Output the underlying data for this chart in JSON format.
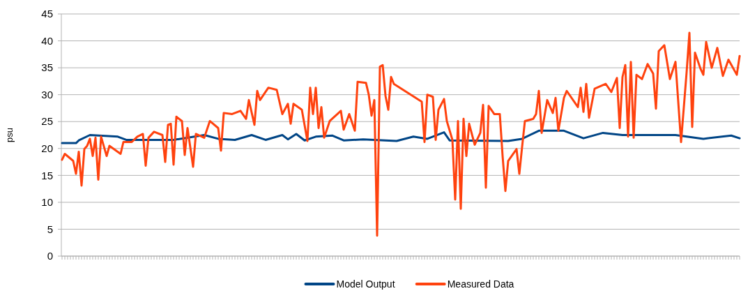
{
  "chart_data": {
    "type": "line",
    "ylabel": "psu",
    "ylim": [
      0,
      45
    ],
    "yticks": [
      0,
      5,
      10,
      15,
      20,
      25,
      30,
      35,
      40,
      45
    ],
    "grid": "y",
    "legend": "bottom",
    "marker": "none",
    "line_style": "solid",
    "categories": [
      null,
      null,
      null,
      null,
      null,
      null,
      null,
      null,
      null,
      null,
      null,
      null,
      null,
      null,
      null,
      null,
      null,
      null,
      null,
      null,
      null,
      null,
      null,
      null,
      null,
      null,
      null,
      null,
      null,
      null,
      null,
      null,
      null,
      null,
      null,
      null,
      null,
      null,
      null,
      null,
      null,
      null,
      null,
      null,
      null,
      null,
      null,
      null,
      null,
      null,
      null,
      null,
      null,
      null,
      null,
      null,
      null,
      null,
      null,
      null,
      null,
      null,
      null,
      null,
      null,
      null,
      null,
      null,
      null,
      null,
      null,
      null,
      null,
      null,
      null,
      null,
      null,
      null,
      null,
      null,
      null,
      null,
      null,
      null,
      null,
      null,
      null,
      null,
      null,
      null,
      null,
      null,
      null,
      null,
      null,
      null,
      null,
      null,
      null,
      null,
      null,
      null,
      null,
      null,
      null,
      null,
      null,
      null,
      null,
      null,
      null,
      null,
      null,
      null,
      null,
      null,
      null,
      null,
      null,
      null,
      null,
      null,
      null,
      null,
      null,
      null,
      null,
      null,
      null,
      null,
      null,
      null,
      null,
      null,
      null,
      null,
      null,
      null,
      null,
      null,
      null,
      null,
      null,
      null,
      null,
      null,
      null,
      null,
      null,
      null,
      null,
      null,
      null,
      null,
      null,
      null,
      null,
      null,
      null,
      null,
      null,
      null,
      null,
      null,
      null,
      null,
      null,
      null,
      null,
      null,
      null,
      null,
      null,
      null,
      null,
      null,
      null,
      null,
      null,
      null,
      null,
      null,
      null,
      null,
      null,
      null,
      null,
      null,
      null,
      null,
      null,
      null,
      null,
      null,
      null,
      null,
      null,
      null,
      null,
      null,
      null,
      null,
      null,
      null,
      null,
      null,
      null,
      null,
      null,
      null,
      null,
      null,
      null,
      null,
      null,
      null,
      null,
      null,
      null,
      null,
      null,
      null,
      null,
      null,
      null,
      null,
      null,
      null,
      null,
      null,
      null,
      null,
      null,
      null,
      null,
      null,
      null,
      null,
      null,
      null,
      null,
      null,
      null,
      null
    ],
    "series": [
      {
        "name": "Model Output",
        "color": "#004586",
        "values": [
          21.0,
          null,
          null,
          null,
          null,
          21.0,
          21.5,
          null,
          null,
          null,
          22.5,
          null,
          null,
          null,
          null,
          null,
          null,
          null,
          null,
          null,
          22.2,
          null,
          null,
          21.6,
          null,
          null,
          null,
          null,
          null,
          null,
          null,
          null,
          null,
          null,
          null,
          null,
          null,
          null,
          null,
          null,
          21.6,
          null,
          null,
          null,
          null,
          null,
          null,
          null,
          null,
          null,
          null,
          22.5,
          null,
          null,
          null,
          null,
          21.8,
          null,
          null,
          null,
          null,
          null,
          21.6,
          null,
          null,
          null,
          null,
          null,
          22.5,
          null,
          null,
          null,
          null,
          21.6,
          null,
          null,
          null,
          null,
          null,
          22.5,
          null,
          21.7,
          null,
          null,
          22.7,
          null,
          null,
          21.5,
          null,
          null,
          null,
          22.2,
          null,
          null,
          null,
          null,
          null,
          22.4,
          null,
          null,
          null,
          21.5,
          null,
          null,
          null,
          null,
          null,
          null,
          21.7,
          null,
          null,
          null,
          null,
          null,
          null,
          null,
          null,
          null,
          null,
          null,
          21.4,
          null,
          null,
          null,
          null,
          null,
          22.2,
          null,
          null,
          null,
          null,
          21.8,
          null,
          null,
          null,
          null,
          null,
          23.0,
          null,
          21.5,
          null,
          null,
          null,
          null,
          null,
          null,
          null,
          null,
          null,
          null,
          null,
          null,
          null,
          null,
          null,
          null,
          null,
          null,
          null,
          null,
          21.4,
          null,
          null,
          null,
          null,
          21.8,
          null,
          null,
          null,
          null,
          null,
          23.3,
          null,
          null,
          null,
          null,
          null,
          null,
          null,
          null,
          23.3,
          null,
          null,
          null,
          null,
          null,
          null,
          21.9,
          null,
          null,
          null,
          null,
          null,
          null,
          22.9,
          null,
          null,
          null,
          null,
          null,
          null,
          22.5,
          null,
          null,
          null,
          null,
          null,
          null,
          null,
          null,
          null,
          null,
          null,
          null,
          null,
          null,
          null,
          null,
          null,
          null,
          22.5,
          null,
          null,
          null,
          null,
          null,
          null,
          null,
          null,
          null,
          21.8,
          null,
          null,
          null,
          null,
          null,
          null,
          null,
          null,
          null,
          22.4,
          null,
          null,
          21.9
        ]
      },
      {
        "name": "Measured Data",
        "color": "#ff420e",
        "values": [
          17.9,
          19.0,
          null,
          null,
          17.7,
          15.3,
          19.4,
          13.1,
          19.9,
          20.5,
          21.8,
          18.6,
          22.0,
          14.2,
          22.2,
          null,
          18.6,
          20.5,
          null,
          null,
          null,
          19.0,
          21.2,
          null,
          null,
          21.2,
          null,
          22.2,
          null,
          22.7,
          16.8,
          22.0,
          null,
          23.1,
          null,
          null,
          22.5,
          17.5,
          24.4,
          24.6,
          17.0,
          25.9,
          null,
          25.1,
          18.8,
          23.8,
          null,
          16.6,
          22.7,
          null,
          null,
          22.0,
          null,
          25.1,
          null,
          null,
          23.8,
          19.6,
          26.6,
          null,
          null,
          26.4,
          null,
          null,
          27.0,
          null,
          25.5,
          29.0,
          null,
          24.4,
          30.7,
          29.0,
          null,
          null,
          31.3,
          null,
          null,
          30.9,
          null,
          26.4,
          null,
          28.3,
          24.6,
          28.3,
          null,
          null,
          27.2,
          null,
          21.4,
          31.3,
          26.4,
          31.3,
          23.8,
          27.7,
          22.0,
          null,
          25.1,
          null,
          null,
          null,
          27.0,
          23.5,
          null,
          26.4,
          null,
          23.3,
          32.4,
          null,
          null,
          32.2,
          30.0,
          26.1,
          29.0,
          3.8,
          35.2,
          35.5,
          29.8,
          27.2,
          33.3,
          32.0,
          null,
          null,
          null,
          null,
          null,
          null,
          null,
          null,
          null,
          28.7,
          21.2,
          30.0,
          null,
          29.6,
          21.6,
          27.2,
          null,
          29.2,
          25.1,
          null,
          21.6,
          10.5,
          25.1,
          8.8,
          25.5,
          18.6,
          24.6,
          null,
          20.7,
          null,
          22.9,
          28.1,
          12.7,
          27.9,
          null,
          26.4,
          null,
          26.4,
          18.6,
          12.1,
          17.7,
          null,
          null,
          19.9,
          15.3,
          20.3,
          25.1,
          null,
          null,
          25.5,
          26.4,
          30.7,
          22.9,
          null,
          29.0,
          null,
          26.6,
          29.4,
          23.3,
          null,
          29.4,
          30.7,
          null,
          null,
          null,
          27.7,
          31.3,
          26.8,
          32.0,
          25.7,
          null,
          31.1,
          null,
          null,
          null,
          32.0,
          null,
          30.5,
          null,
          33.1,
          23.8,
          33.3,
          35.5,
          22.2,
          36.1,
          22.0,
          33.7,
          null,
          32.9,
          null,
          35.7,
          null,
          33.9,
          27.4,
          38.1,
          null,
          39.2,
          null,
          32.9,
          null,
          36.1,
          null,
          21.2,
          null,
          34.2,
          41.5,
          24.0,
          37.8,
          null,
          34.8,
          33.7,
          39.8,
          null,
          35.0,
          null,
          38.7,
          null,
          33.5,
          null,
          36.5,
          null,
          null,
          33.7,
          37.2
        ]
      }
    ]
  }
}
